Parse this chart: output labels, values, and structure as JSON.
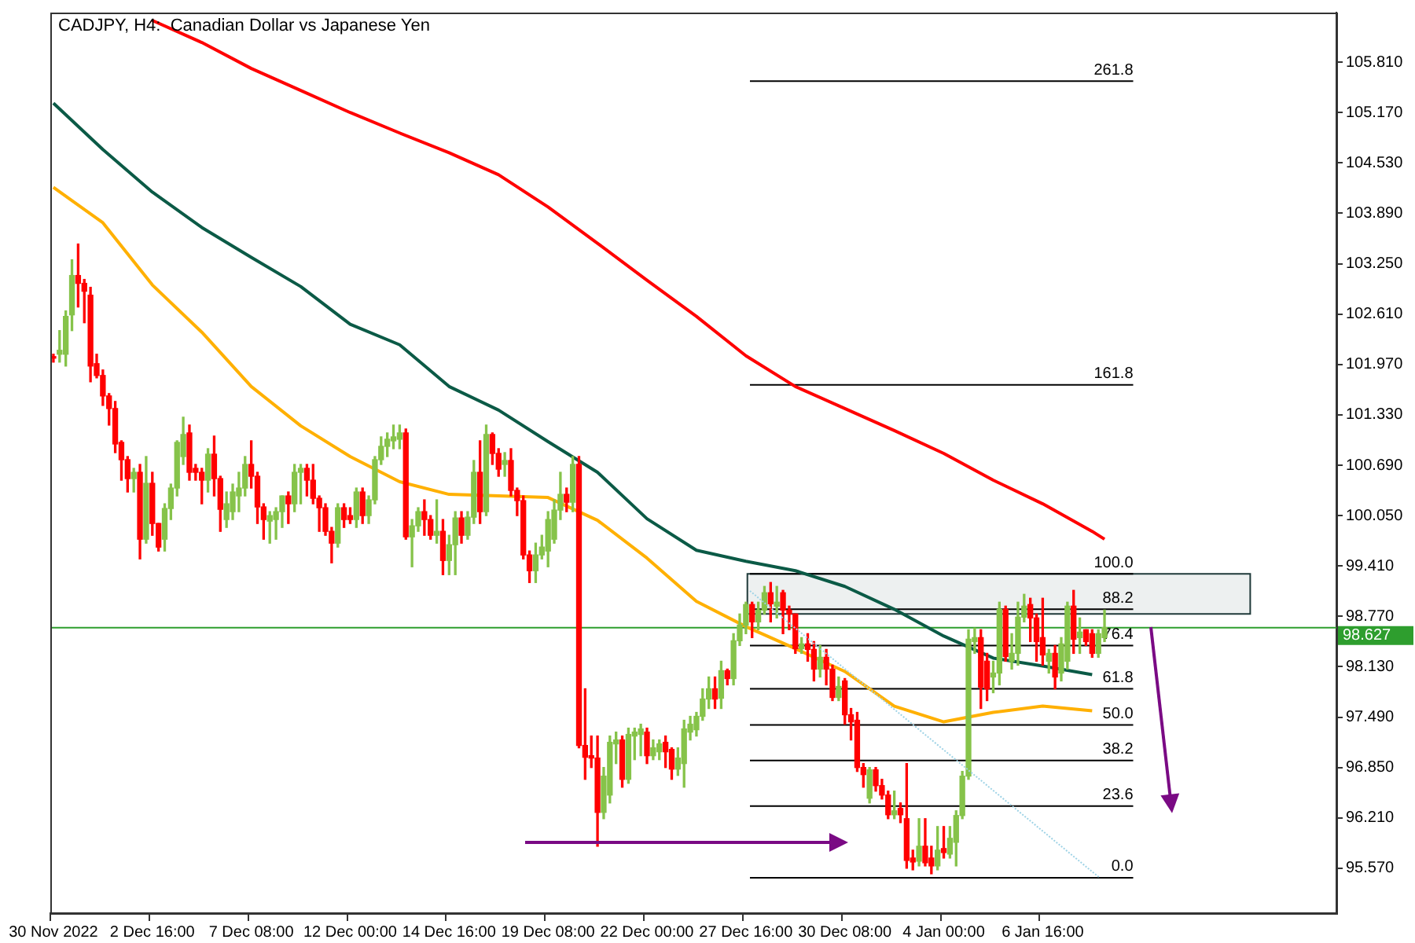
{
  "chart_data": {
    "type": "candlestick",
    "title": "CADJPY, H4:  Canadian Dollar vs Japanese Yen",
    "categories": [
      "30 Nov 2022",
      null,
      null,
      null,
      null,
      null,
      null,
      null,
      null,
      null,
      null,
      null,
      null,
      null,
      null,
      null,
      "2 Dec 16:00",
      null,
      null,
      null,
      null,
      null,
      null,
      null,
      null,
      null,
      null,
      null,
      null,
      null,
      null,
      null,
      "7 Dec 08:00",
      null,
      null,
      null,
      null,
      null,
      null,
      null,
      null,
      null,
      null,
      null,
      null,
      null,
      null,
      null,
      "12 Dec 00:00",
      null,
      null,
      null,
      null,
      null,
      null,
      null,
      null,
      null,
      null,
      null,
      null,
      null,
      null,
      null,
      "14 Dec 16:00",
      null,
      null,
      null,
      null,
      null,
      null,
      null,
      null,
      null,
      null,
      null,
      null,
      null,
      null,
      null,
      "19 Dec 08:00",
      null,
      null,
      null,
      null,
      null,
      null,
      null,
      null,
      null,
      null,
      null,
      null,
      null,
      null,
      null,
      "22 Dec 00:00",
      null,
      null,
      null,
      null,
      null,
      null,
      null,
      null,
      null,
      null,
      null,
      null,
      null,
      null,
      null,
      "27 Dec 16:00",
      null,
      null,
      null,
      null,
      null,
      null,
      null,
      null,
      null,
      null,
      null,
      null,
      null,
      null,
      null,
      "30 Dec 08:00",
      null,
      null,
      null,
      null,
      null,
      null,
      null,
      null,
      null,
      null,
      null,
      null,
      null,
      null,
      null,
      "4 Jan 00:00",
      null,
      null,
      null,
      null,
      null,
      null,
      null,
      null,
      null,
      null,
      null,
      null,
      null,
      null,
      null,
      "6 Jan 16:00",
      null,
      null,
      null,
      null,
      null,
      null,
      null,
      null,
      null,
      null,
      null,
      null,
      null,
      null,
      null,
      null,
      null,
      null,
      null,
      null,
      null,
      null,
      null,
      null,
      null,
      null,
      null,
      null,
      null,
      null,
      null,
      null,
      null,
      null,
      null,
      null,
      null,
      null,
      null,
      null,
      null,
      null,
      null,
      null,
      null,
      null,
      null
    ],
    "ohlc": [
      [
        102.07,
        102.1,
        102.0,
        102.05
      ],
      [
        102.1,
        102.4,
        102.0,
        102.15
      ],
      [
        102.1,
        102.65,
        101.95,
        102.58
      ],
      [
        102.6,
        103.3,
        102.4,
        103.1
      ],
      [
        103.1,
        103.5,
        102.7,
        103.0
      ],
      [
        103.0,
        103.05,
        102.5,
        102.9
      ],
      [
        102.85,
        102.95,
        101.75,
        101.95
      ],
      [
        101.98,
        102.1,
        101.8,
        101.83
      ],
      [
        101.83,
        101.9,
        101.45,
        101.57
      ],
      [
        101.57,
        101.6,
        101.2,
        101.41
      ],
      [
        101.41,
        101.5,
        100.85,
        100.96
      ],
      [
        100.98,
        101.0,
        100.5,
        100.76
      ],
      [
        100.76,
        100.8,
        100.35,
        100.52
      ],
      [
        100.52,
        100.65,
        100.35,
        100.6
      ],
      [
        100.6,
        100.7,
        99.5,
        99.75
      ],
      [
        99.75,
        100.8,
        99.7,
        100.46
      ],
      [
        100.46,
        100.6,
        99.8,
        99.95
      ],
      [
        99.95,
        99.95,
        99.6,
        99.65
      ],
      [
        99.75,
        100.2,
        99.6,
        100.14
      ],
      [
        100.14,
        100.45,
        100.0,
        100.4
      ],
      [
        100.4,
        101.0,
        100.3,
        100.98
      ],
      [
        100.8,
        101.3,
        100.7,
        101.08
      ],
      [
        101.1,
        101.2,
        100.5,
        100.6
      ],
      [
        100.65,
        100.7,
        100.5,
        100.6
      ],
      [
        100.6,
        100.65,
        100.2,
        100.5
      ],
      [
        100.5,
        100.9,
        100.35,
        100.83
      ],
      [
        100.83,
        101.06,
        100.3,
        100.52
      ],
      [
        100.52,
        100.55,
        99.85,
        100.13
      ],
      [
        100.0,
        100.35,
        99.9,
        100.2
      ],
      [
        100.1,
        100.45,
        100.0,
        100.35
      ],
      [
        100.3,
        100.6,
        100.1,
        100.4
      ],
      [
        100.4,
        100.8,
        100.3,
        100.7
      ],
      [
        100.7,
        101.0,
        100.4,
        100.55
      ],
      [
        100.55,
        100.6,
        99.95,
        100.16
      ],
      [
        100.16,
        100.2,
        99.75,
        100.0
      ],
      [
        99.98,
        100.1,
        99.7,
        100.05
      ],
      [
        100.0,
        100.15,
        99.75,
        100.1
      ],
      [
        100.1,
        100.3,
        99.9,
        100.3
      ],
      [
        100.3,
        100.35,
        99.95,
        100.2
      ],
      [
        100.2,
        100.7,
        100.1,
        100.6
      ],
      [
        100.6,
        100.7,
        100.2,
        100.65
      ],
      [
        100.65,
        100.7,
        100.3,
        100.5
      ],
      [
        100.5,
        100.7,
        100.2,
        100.27
      ],
      [
        100.27,
        100.3,
        99.85,
        100.15
      ],
      [
        100.15,
        100.2,
        99.8,
        99.85
      ],
      [
        99.85,
        99.9,
        99.45,
        99.7
      ],
      [
        99.7,
        100.2,
        99.65,
        100.15
      ],
      [
        100.15,
        100.2,
        99.9,
        100.0
      ],
      [
        100.05,
        100.15,
        99.95,
        100.0
      ],
      [
        100.0,
        100.4,
        99.9,
        100.35
      ],
      [
        100.35,
        100.4,
        99.95,
        100.05
      ],
      [
        100.05,
        100.3,
        99.95,
        100.25
      ],
      [
        100.25,
        100.8,
        100.2,
        100.76
      ],
      [
        100.76,
        101.05,
        100.7,
        100.93
      ],
      [
        100.93,
        101.1,
        100.8,
        101.02
      ],
      [
        101.0,
        101.2,
        100.9,
        101.05
      ],
      [
        101.02,
        101.2,
        100.9,
        101.1
      ],
      [
        101.1,
        101.15,
        99.75,
        99.78
      ],
      [
        99.78,
        100.0,
        99.4,
        99.92
      ],
      [
        99.92,
        100.15,
        99.85,
        100.1
      ],
      [
        100.1,
        100.25,
        99.8,
        100.0
      ],
      [
        100.0,
        100.05,
        99.75,
        99.8
      ],
      [
        99.8,
        100.25,
        99.7,
        99.85
      ],
      [
        99.85,
        100.0,
        99.3,
        99.48
      ],
      [
        99.48,
        99.8,
        99.3,
        99.68
      ],
      [
        99.68,
        100.1,
        99.3,
        100.02
      ],
      [
        100.02,
        100.1,
        99.7,
        99.8
      ],
      [
        99.8,
        100.1,
        99.75,
        100.03
      ],
      [
        100.03,
        100.75,
        99.95,
        100.6
      ],
      [
        100.6,
        101.0,
        99.95,
        100.1
      ],
      [
        100.1,
        101.2,
        100.05,
        101.08
      ],
      [
        101.08,
        101.1,
        100.7,
        100.84
      ],
      [
        100.84,
        100.9,
        100.55,
        100.64
      ],
      [
        100.7,
        100.85,
        100.55,
        100.75
      ],
      [
        100.75,
        100.9,
        100.3,
        100.37
      ],
      [
        100.37,
        100.4,
        100.05,
        100.24
      ],
      [
        100.24,
        100.3,
        99.5,
        99.55
      ],
      [
        99.55,
        99.6,
        99.2,
        99.35
      ],
      [
        99.35,
        99.7,
        99.2,
        99.55
      ],
      [
        99.55,
        99.8,
        99.5,
        99.65
      ],
      [
        99.6,
        100.1,
        99.4,
        100.0
      ],
      [
        99.75,
        100.25,
        99.7,
        100.12
      ],
      [
        100.12,
        100.6,
        100.0,
        100.32
      ],
      [
        100.32,
        100.4,
        100.1,
        100.22
      ],
      [
        100.22,
        100.8,
        100.1,
        100.7
      ],
      [
        100.7,
        100.8,
        97.1,
        97.13
      ],
      [
        97.13,
        97.85,
        96.7,
        96.98
      ],
      [
        97.0,
        97.25,
        96.85,
        96.97
      ],
      [
        96.97,
        97.25,
        95.85,
        96.28
      ],
      [
        96.28,
        96.85,
        96.2,
        96.74
      ],
      [
        96.5,
        97.25,
        96.4,
        97.17
      ],
      [
        97.15,
        97.3,
        96.9,
        97.2
      ],
      [
        97.2,
        97.25,
        96.6,
        96.7
      ],
      [
        96.7,
        97.35,
        96.65,
        97.27
      ],
      [
        97.25,
        97.35,
        96.95,
        97.3
      ],
      [
        97.27,
        97.4,
        97.0,
        97.34
      ],
      [
        97.3,
        97.35,
        96.9,
        97.0
      ],
      [
        97.0,
        97.2,
        96.95,
        97.1
      ],
      [
        97.05,
        97.2,
        96.95,
        97.15
      ],
      [
        97.17,
        97.25,
        96.85,
        97.05
      ],
      [
        97.08,
        97.1,
        96.7,
        96.83
      ],
      [
        96.83,
        97.1,
        96.75,
        96.97
      ],
      [
        96.9,
        97.45,
        96.6,
        97.34
      ],
      [
        97.3,
        97.5,
        97.2,
        97.4
      ],
      [
        97.33,
        97.55,
        97.25,
        97.5
      ],
      [
        97.5,
        97.85,
        97.45,
        97.72
      ],
      [
        97.72,
        98.0,
        97.6,
        97.85
      ],
      [
        97.85,
        98.0,
        97.6,
        97.72
      ],
      [
        97.73,
        98.2,
        97.6,
        98.08
      ],
      [
        98.08,
        98.1,
        97.9,
        97.98
      ],
      [
        97.98,
        98.55,
        97.9,
        98.46
      ],
      [
        98.46,
        98.8,
        98.4,
        98.66
      ],
      [
        98.66,
        98.95,
        98.55,
        98.92
      ],
      [
        98.92,
        98.95,
        98.5,
        98.7
      ],
      [
        98.7,
        98.95,
        98.6,
        98.85
      ],
      [
        98.85,
        99.15,
        98.8,
        99.07
      ],
      [
        99.07,
        99.2,
        98.7,
        98.93
      ],
      [
        98.9,
        99.15,
        98.75,
        98.95
      ],
      [
        99.07,
        99.1,
        98.55,
        98.85
      ],
      [
        98.85,
        98.9,
        98.6,
        98.8
      ],
      [
        98.8,
        98.8,
        98.3,
        98.36
      ],
      [
        98.36,
        98.5,
        98.3,
        98.42
      ],
      [
        98.42,
        98.55,
        98.2,
        98.35
      ],
      [
        98.35,
        98.45,
        97.95,
        98.1
      ],
      [
        98.1,
        98.4,
        98.0,
        98.25
      ],
      [
        98.25,
        98.35,
        97.9,
        98.1
      ],
      [
        98.1,
        98.15,
        97.7,
        97.74
      ],
      [
        97.74,
        98.0,
        97.7,
        97.88
      ],
      [
        97.95,
        97.98,
        97.4,
        97.52
      ],
      [
        97.52,
        97.6,
        97.2,
        97.43
      ],
      [
        97.45,
        97.55,
        96.8,
        96.85
      ],
      [
        96.85,
        96.9,
        96.6,
        96.76
      ],
      [
        96.46,
        96.85,
        96.4,
        96.82
      ],
      [
        96.82,
        96.85,
        96.55,
        96.62
      ],
      [
        96.62,
        96.7,
        96.45,
        96.5
      ],
      [
        96.5,
        96.55,
        96.2,
        96.25
      ],
      [
        96.25,
        96.55,
        96.2,
        96.3
      ],
      [
        96.33,
        96.4,
        96.15,
        96.25
      ],
      [
        96.2,
        96.9,
        95.57,
        95.67
      ],
      [
        95.7,
        95.8,
        95.55,
        95.65
      ],
      [
        95.66,
        96.2,
        95.6,
        95.85
      ],
      [
        95.85,
        96.2,
        95.6,
        95.64
      ],
      [
        95.7,
        95.85,
        95.5,
        95.6
      ],
      [
        95.6,
        96.1,
        95.55,
        95.8
      ],
      [
        95.82,
        96.1,
        95.7,
        95.77
      ],
      [
        95.75,
        96.1,
        95.7,
        95.95
      ],
      [
        95.9,
        96.3,
        95.6,
        96.24
      ],
      [
        96.24,
        96.8,
        96.2,
        96.74
      ],
      [
        96.74,
        98.6,
        96.7,
        98.48
      ],
      [
        98.45,
        98.62,
        98.3,
        98.5
      ],
      [
        98.5,
        98.6,
        97.6,
        97.87
      ],
      [
        98.2,
        98.3,
        97.7,
        97.85
      ],
      [
        98.0,
        98.2,
        97.8,
        98.05
      ],
      [
        98.05,
        98.95,
        97.9,
        98.86
      ],
      [
        98.86,
        98.9,
        98.2,
        98.26
      ],
      [
        98.2,
        98.55,
        98.1,
        98.3
      ],
      [
        98.3,
        98.95,
        98.15,
        98.76
      ],
      [
        98.76,
        99.05,
        98.7,
        98.9
      ],
      [
        98.92,
        99.0,
        98.45,
        98.75
      ],
      [
        98.75,
        98.8,
        98.2,
        98.45
      ],
      [
        98.5,
        99.0,
        98.15,
        98.28
      ],
      [
        98.2,
        98.35,
        98.05,
        98.3
      ],
      [
        98.3,
        98.4,
        97.85,
        98.0
      ],
      [
        98.05,
        98.5,
        97.95,
        98.42
      ],
      [
        98.2,
        98.95,
        98.1,
        98.9
      ],
      [
        98.9,
        99.1,
        98.3,
        98.48
      ],
      [
        98.5,
        98.75,
        98.3,
        98.57
      ],
      [
        98.6,
        98.6,
        98.4,
        98.45
      ],
      [
        98.55,
        98.6,
        98.25,
        98.3
      ],
      [
        98.3,
        98.6,
        98.25,
        98.55
      ],
      [
        98.5,
        98.85,
        98.45,
        98.627
      ],
      null,
      null,
      null,
      null,
      null,
      null,
      null,
      null,
      null,
      null,
      null,
      null,
      null,
      null,
      null,
      null,
      null,
      null,
      null,
      null,
      null,
      null,
      null,
      null,
      null,
      null,
      null,
      null,
      null,
      null,
      null,
      null,
      null,
      null,
      null,
      null,
      null
    ],
    "series": [
      {
        "type": "line",
        "color": "#ff0000",
        "values": [
          null,
          null,
          null,
          null,
          null,
          null,
          null,
          null,
          null,
          null,
          null,
          null,
          null,
          null,
          null,
          null,
          106.34,
          null,
          null,
          null,
          null,
          null,
          null,
          null,
          106.06,
          null,
          null,
          null,
          null,
          null,
          null,
          null,
          105.73,
          null,
          null,
          null,
          null,
          null,
          null,
          null,
          105.45,
          null,
          null,
          null,
          null,
          null,
          null,
          null,
          105.17,
          null,
          null,
          null,
          null,
          null,
          null,
          null,
          104.91,
          null,
          null,
          null,
          null,
          null,
          null,
          null,
          104.66,
          null,
          null,
          null,
          null,
          null,
          null,
          null,
          104.38,
          null,
          null,
          null,
          null,
          null,
          null,
          null,
          103.97,
          null,
          null,
          null,
          null,
          null,
          null,
          null,
          103.51,
          null,
          null,
          null,
          null,
          null,
          null,
          null,
          103.04,
          null,
          null,
          null,
          null,
          null,
          null,
          null,
          102.58,
          null,
          null,
          null,
          null,
          null,
          null,
          null,
          102.08,
          null,
          null,
          null,
          null,
          null,
          null,
          null,
          101.69,
          null,
          null,
          null,
          null,
          null,
          null,
          null,
          101.41,
          null,
          null,
          null,
          null,
          null,
          null,
          null,
          101.13,
          null,
          null,
          null,
          null,
          null,
          null,
          null,
          100.84,
          null,
          null,
          null,
          null,
          null,
          null,
          null,
          100.5,
          null,
          null,
          null,
          null,
          null,
          null,
          null,
          100.2,
          null,
          null,
          null,
          null,
          null,
          null,
          null,
          99.85,
          null,
          99.75,
          null,
          null,
          null,
          null,
          null,
          null,
          null,
          null,
          null,
          null,
          null,
          null,
          null,
          null,
          null,
          null,
          null,
          null,
          null,
          null,
          null,
          null,
          null,
          null,
          null,
          null,
          null,
          null,
          null,
          null,
          null,
          null,
          null,
          null,
          null,
          null,
          null
        ]
      },
      {
        "type": "line",
        "color": "#0b5a46",
        "values": [
          105.29,
          null,
          null,
          null,
          null,
          null,
          null,
          null,
          104.7,
          null,
          null,
          null,
          null,
          null,
          null,
          null,
          104.16,
          null,
          null,
          null,
          null,
          null,
          null,
          null,
          103.71,
          null,
          null,
          null,
          null,
          null,
          null,
          null,
          103.33,
          null,
          null,
          null,
          null,
          null,
          null,
          null,
          102.96,
          null,
          null,
          null,
          null,
          null,
          null,
          null,
          102.48,
          null,
          null,
          null,
          null,
          null,
          null,
          null,
          102.22,
          null,
          null,
          null,
          null,
          null,
          null,
          null,
          101.69,
          null,
          null,
          null,
          null,
          null,
          null,
          null,
          101.39,
          null,
          null,
          null,
          null,
          null,
          null,
          null,
          100.99,
          null,
          null,
          null,
          null,
          null,
          null,
          null,
          100.6,
          null,
          null,
          null,
          null,
          null,
          null,
          null,
          100.01,
          null,
          null,
          null,
          null,
          null,
          null,
          null,
          99.61,
          null,
          null,
          null,
          null,
          null,
          null,
          null,
          99.47,
          null,
          null,
          null,
          null,
          null,
          null,
          null,
          99.35,
          null,
          null,
          null,
          null,
          null,
          null,
          null,
          99.15,
          null,
          null,
          null,
          null,
          null,
          null,
          null,
          98.86,
          null,
          null,
          null,
          null,
          null,
          null,
          null,
          98.52,
          null,
          null,
          null,
          null,
          null,
          null,
          null,
          98.24,
          null,
          null,
          null,
          null,
          null,
          null,
          null,
          98.14,
          null,
          null,
          null,
          null,
          null,
          null,
          null,
          98.03,
          null,
          null,
          null,
          null,
          null,
          null,
          null,
          null,
          null,
          null,
          null,
          null,
          null,
          null,
          null,
          null,
          null,
          null,
          null,
          null,
          null,
          null,
          null,
          null,
          null,
          null,
          null,
          null,
          null,
          null,
          null,
          null,
          null,
          null,
          null,
          null,
          null,
          null,
          null
        ]
      },
      {
        "type": "line",
        "color": "#ffb000",
        "values": [
          104.22,
          null,
          null,
          null,
          null,
          null,
          null,
          null,
          103.77,
          null,
          null,
          null,
          null,
          null,
          null,
          null,
          102.98,
          null,
          null,
          null,
          null,
          null,
          null,
          null,
          102.38,
          null,
          null,
          null,
          null,
          null,
          null,
          null,
          101.69,
          null,
          null,
          null,
          null,
          null,
          null,
          null,
          101.19,
          null,
          null,
          null,
          null,
          null,
          null,
          null,
          100.8,
          null,
          null,
          null,
          null,
          null,
          null,
          null,
          100.48,
          null,
          null,
          null,
          null,
          null,
          null,
          null,
          100.32,
          null,
          null,
          null,
          null,
          null,
          null,
          null,
          100.3,
          null,
          null,
          null,
          null,
          null,
          null,
          null,
          100.28,
          null,
          null,
          null,
          null,
          null,
          null,
          null,
          99.99,
          null,
          null,
          null,
          null,
          null,
          null,
          null,
          99.51,
          null,
          null,
          null,
          null,
          null,
          null,
          null,
          98.96,
          null,
          null,
          null,
          null,
          null,
          null,
          null,
          98.64,
          null,
          null,
          null,
          null,
          null,
          null,
          null,
          98.36,
          null,
          null,
          null,
          null,
          null,
          null,
          null,
          98.07,
          null,
          null,
          null,
          null,
          null,
          null,
          null,
          97.63,
          null,
          null,
          null,
          null,
          null,
          null,
          null,
          97.43,
          null,
          null,
          null,
          null,
          null,
          null,
          null,
          97.55,
          null,
          null,
          null,
          null,
          null,
          null,
          null,
          97.63,
          null,
          null,
          null,
          null,
          null,
          null,
          null,
          97.57,
          null,
          null,
          null,
          null,
          null,
          null,
          null,
          null,
          null,
          null,
          null,
          null,
          null,
          null,
          null,
          null,
          null,
          null,
          null,
          null,
          null,
          null,
          null,
          null,
          null,
          null,
          null,
          null,
          null,
          null,
          null,
          null,
          null,
          null,
          null,
          null,
          null,
          null,
          null
        ]
      }
    ],
    "ylim": [
      95.0,
      106.44
    ],
    "yticks": [
      {
        "value": 95.57,
        "label": "95.570"
      },
      {
        "value": 96.21,
        "label": "96.210"
      },
      {
        "value": 96.85,
        "label": "96.850"
      },
      {
        "value": 97.49,
        "label": "97.490"
      },
      {
        "value": 98.13,
        "label": "98.130"
      },
      {
        "value": 98.77,
        "label": "98.770"
      },
      {
        "value": 99.41,
        "label": "99.410"
      },
      {
        "value": 100.05,
        "label": "100.050"
      },
      {
        "value": 100.69,
        "label": "100.690"
      },
      {
        "value": 101.33,
        "label": "101.330"
      },
      {
        "value": 101.97,
        "label": "101.970"
      },
      {
        "value": 102.61,
        "label": "102.610"
      },
      {
        "value": 103.25,
        "label": "103.250"
      },
      {
        "value": 103.89,
        "label": "103.890"
      },
      {
        "value": 104.53,
        "label": "104.530"
      },
      {
        "value": 105.17,
        "label": "105.170"
      },
      {
        "value": 105.81,
        "label": "105.810"
      }
    ],
    "ref_lines": [
      {
        "axis": "y",
        "value": 98.627,
        "label": "98.627",
        "color": "#2e9e2e"
      },
      {
        "axis": "y",
        "value": 105.57,
        "color": "#000000"
      },
      {
        "axis": "y",
        "value": 101.71,
        "color": "#000000"
      },
      {
        "axis": "y",
        "value": 99.31,
        "color": "#000000"
      },
      {
        "axis": "y",
        "value": 98.86,
        "color": "#000000"
      },
      {
        "axis": "y",
        "value": 98.4,
        "color": "#000000"
      },
      {
        "axis": "y",
        "value": 97.85,
        "color": "#000000"
      },
      {
        "axis": "y",
        "value": 97.39,
        "color": "#000000"
      },
      {
        "axis": "y",
        "value": 96.94,
        "color": "#000000"
      },
      {
        "axis": "y",
        "value": 96.36,
        "color": "#000000"
      },
      {
        "axis": "y",
        "value": 95.45,
        "color": "#000000"
      }
    ],
    "annotations": [
      {
        "text": "261.8",
        "y": 105.57
      },
      {
        "text": "161.8",
        "y": 101.71
      },
      {
        "text": "100.0",
        "y": 99.31
      },
      {
        "text": "88.2",
        "y": 98.86
      },
      {
        "text": "76.4",
        "y": 98.4
      },
      {
        "text": "61.8",
        "y": 97.85
      },
      {
        "text": "50.0",
        "y": 97.39
      },
      {
        "text": "38.2",
        "y": 96.94
      },
      {
        "text": "23.6",
        "y": 96.36
      },
      {
        "text": "0.0",
        "y": 95.45
      }
    ],
    "bands": [
      {
        "axis": "y",
        "from": 98.8,
        "to": 99.31,
        "color": "#1f3a3a"
      }
    ],
    "grid": false,
    "legend": false
  }
}
